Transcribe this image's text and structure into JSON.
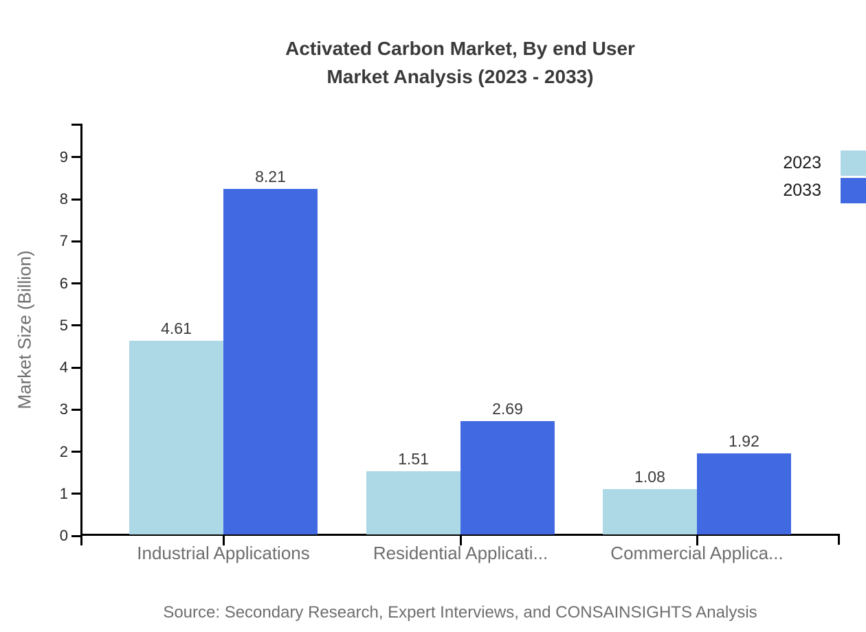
{
  "chart_data": {
    "type": "bar",
    "title": "Activated Carbon Market, By end User",
    "subtitle": "Market Analysis (2023 - 2033)",
    "categories": [
      "Industrial Applications",
      "Residential Applicati...",
      "Commercial Applica..."
    ],
    "series": [
      {
        "name": "2023",
        "color": "#ADD8E6",
        "values": [
          4.61,
          1.51,
          1.08
        ]
      },
      {
        "name": "2033",
        "color": "#4169E1",
        "values": [
          8.21,
          2.69,
          1.92
        ]
      }
    ],
    "xlabel": "",
    "ylabel": "Market Size (Billion)",
    "yticks": [
      0,
      1,
      2,
      3,
      4,
      5,
      6,
      7,
      8,
      9
    ],
    "ylim": [
      0,
      9.8
    ],
    "grid": false,
    "legend_position": "top-right",
    "value_labels": [
      "4.61",
      "8.21",
      "1.51",
      "2.69",
      "1.08",
      "1.92"
    ],
    "axis_color": "#000000",
    "title_color": "#3a3a3a",
    "label_color": "#6e6e6e",
    "source": "Source: Secondary Research, Expert Interviews, and CONSAINSIGHTS Analysis"
  }
}
